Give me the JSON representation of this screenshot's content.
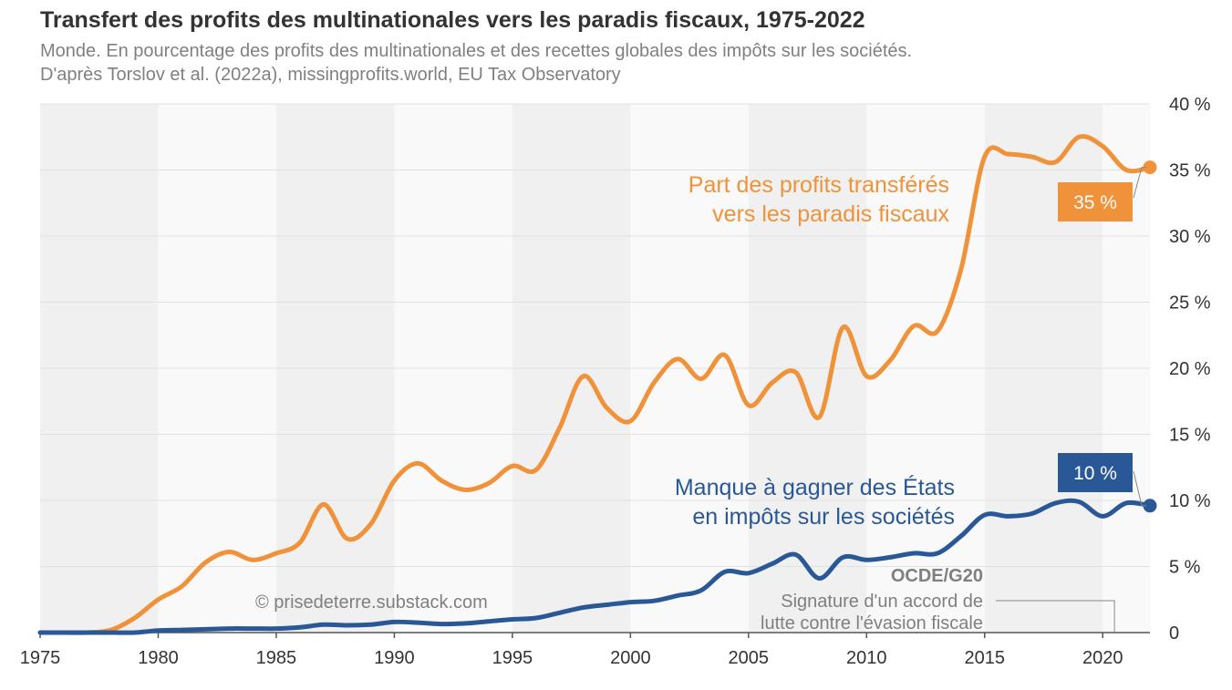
{
  "chart_data": {
    "type": "line",
    "title": "Transfert des profits des multinationales vers les paradis fiscaux, 1975-2022",
    "subtitle": "Monde. En pourcentage des profits des multinationales et des recettes globales des impôts sur les sociétés.",
    "source": "D'après Torslov et al. (2022a), missingprofits.world, EU Tax Observatory",
    "xlim": [
      1975,
      2022
    ],
    "ylim": [
      0,
      40
    ],
    "x_ticks": [
      1975,
      1980,
      1985,
      1990,
      1995,
      2000,
      2005,
      2010,
      2015,
      2020
    ],
    "y_ticks": [
      0,
      5,
      10,
      15,
      20,
      25,
      30,
      35,
      40
    ],
    "y_tick_labels": [
      "0",
      "5 %",
      "10 %",
      "15 %",
      "20 %",
      "25 %",
      "30 %",
      "35 %",
      "40 %"
    ],
    "series": [
      {
        "name": "Part des profits transférés vers les paradis fiscaux",
        "label_lines": [
          "Part des profits transférés",
          "vers les paradis fiscaux"
        ],
        "color": "#F0923A",
        "end_label": "35 %",
        "x": [
          1975,
          1976,
          1977,
          1978,
          1979,
          1980,
          1981,
          1982,
          1983,
          1984,
          1985,
          1986,
          1987,
          1988,
          1989,
          1990,
          1991,
          1992,
          1993,
          1994,
          1995,
          1996,
          1997,
          1998,
          1999,
          2000,
          2001,
          2002,
          2003,
          2004,
          2005,
          2006,
          2007,
          2008,
          2009,
          2010,
          2011,
          2012,
          2013,
          2014,
          2015,
          2016,
          2017,
          2018,
          2019,
          2020,
          2021,
          2022
        ],
        "values": [
          0,
          0,
          0,
          0.2,
          1.1,
          2.5,
          3.5,
          5.3,
          6.1,
          5.5,
          6.0,
          6.8,
          9.7,
          7.1,
          8.2,
          11.5,
          12.8,
          11.5,
          10.8,
          11.3,
          12.6,
          12.3,
          15.5,
          19.4,
          17.0,
          16.0,
          18.9,
          20.7,
          19.2,
          21.0,
          17.2,
          18.9,
          19.7,
          16.3,
          23.1,
          19.4,
          20.6,
          23.2,
          22.8,
          27.5,
          36.0,
          36.2,
          36.0,
          35.6,
          37.5,
          36.8,
          35.0,
          35.2
        ]
      },
      {
        "name": "Manque à gagner des États en impôts sur les sociétés",
        "label_lines": [
          "Manque à gagner des États",
          "en impôts sur les sociétés"
        ],
        "color": "#2A5897",
        "end_label": "10 %",
        "x": [
          1975,
          1976,
          1977,
          1978,
          1979,
          1980,
          1981,
          1982,
          1983,
          1984,
          1985,
          1986,
          1987,
          1988,
          1989,
          1990,
          1991,
          1992,
          1993,
          1994,
          1995,
          1996,
          1997,
          1998,
          1999,
          2000,
          2001,
          2002,
          2003,
          2004,
          2005,
          2006,
          2007,
          2008,
          2009,
          2010,
          2011,
          2012,
          2013,
          2014,
          2015,
          2016,
          2017,
          2018,
          2019,
          2020,
          2021,
          2022
        ],
        "values": [
          0,
          0,
          0,
          0,
          0,
          0.15,
          0.2,
          0.25,
          0.3,
          0.3,
          0.3,
          0.4,
          0.6,
          0.55,
          0.6,
          0.8,
          0.75,
          0.65,
          0.7,
          0.85,
          1.0,
          1.1,
          1.5,
          1.9,
          2.1,
          2.3,
          2.4,
          2.8,
          3.2,
          4.6,
          4.5,
          5.2,
          5.9,
          4.1,
          5.7,
          5.5,
          5.7,
          6.0,
          6.0,
          7.3,
          8.9,
          8.8,
          9.0,
          9.8,
          9.9,
          8.8,
          9.8,
          9.6
        ]
      }
    ],
    "annotations": {
      "credit": "© prisedeterre.substack.com",
      "event_title": "OCDE/G20",
      "event_line1": "Signature d'un accord de",
      "event_line2": "lutte contre l'évasion fiscale",
      "event_year": 2021
    },
    "band_colors": [
      "#F0F0F0",
      "#F9F9F9"
    ],
    "grid": true
  }
}
